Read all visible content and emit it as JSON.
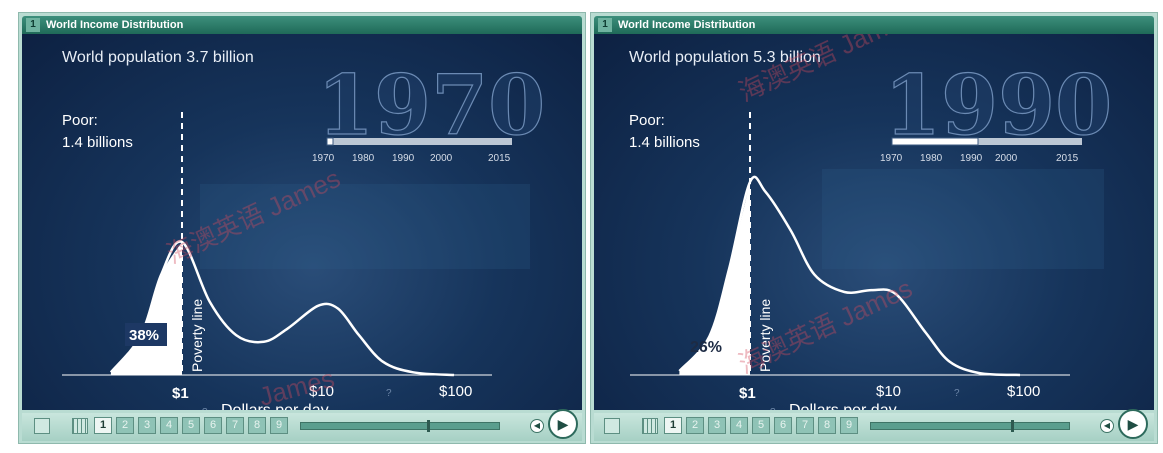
{
  "panels": [
    {
      "header": {
        "number": "1",
        "title": "World Income Distribution"
      },
      "population_text": "World population 3.7 billion",
      "year": "1970",
      "poor_label": "Poor:",
      "poor_value": "1.4 billions",
      "share_label": "38%",
      "poverty_line_label": "Poverty line",
      "timeline": {
        "labels": [
          "1970",
          "1980",
          "1990",
          "2000",
          "2015"
        ],
        "progress": 0.05
      },
      "pages": [
        "1",
        "2",
        "3",
        "4",
        "5",
        "6",
        "7",
        "8",
        "9"
      ],
      "active_page": "1"
    },
    {
      "header": {
        "number": "1",
        "title": "World Income Distribution"
      },
      "population_text": "World population 5.3 billion",
      "year": "1990",
      "poor_label": "Poor:",
      "poor_value": "1.4 billions",
      "share_label": "26%",
      "poverty_line_label": "Poverty line",
      "timeline": {
        "labels": [
          "1970",
          "1980",
          "1990",
          "2000",
          "2015"
        ],
        "progress": 0.45
      },
      "pages": [
        "1",
        "2",
        "3",
        "4",
        "5",
        "6",
        "7",
        "8",
        "9"
      ],
      "active_page": "1"
    }
  ],
  "watermarks": [
    "海澳英语 James",
    "James"
  ],
  "colors": {
    "header": "#1f6a58",
    "background": "#16345b",
    "curve": "#ffffff",
    "controls": "#a6d0c4"
  },
  "chart_data": [
    {
      "type": "area",
      "title": "World population 3.7 billion",
      "xlabel": "Dollars per day",
      "ylabel": "",
      "xscale": "log",
      "xticks": [
        1,
        10,
        100
      ],
      "xtick_labels": [
        "$1",
        "$10",
        "$100"
      ],
      "x": [
        0.3,
        0.5,
        0.7,
        1.0,
        1.6,
        2.5,
        4,
        6,
        10,
        14,
        20,
        30,
        50,
        100
      ],
      "y": [
        0.02,
        0.3,
        0.75,
        1.0,
        0.55,
        0.3,
        0.25,
        0.35,
        0.52,
        0.5,
        0.3,
        0.1,
        0.02,
        0.0
      ],
      "poverty_line_x": 1,
      "share_below_poverty_line": "38%"
    },
    {
      "type": "area",
      "title": "World population 5.3 billion",
      "xlabel": "Dollars per day",
      "ylabel": "",
      "xscale": "log",
      "xticks": [
        1,
        10,
        100
      ],
      "xtick_labels": [
        "$1",
        "$10",
        "$100"
      ],
      "x": [
        0.3,
        0.5,
        0.7,
        1.0,
        1.3,
        2,
        3,
        5,
        8,
        12,
        20,
        30,
        50,
        100
      ],
      "y": [
        0.02,
        0.2,
        0.55,
        1.0,
        0.95,
        0.75,
        0.52,
        0.43,
        0.44,
        0.42,
        0.22,
        0.07,
        0.01,
        0.0
      ],
      "poverty_line_x": 1,
      "share_below_poverty_line": "26%"
    }
  ]
}
